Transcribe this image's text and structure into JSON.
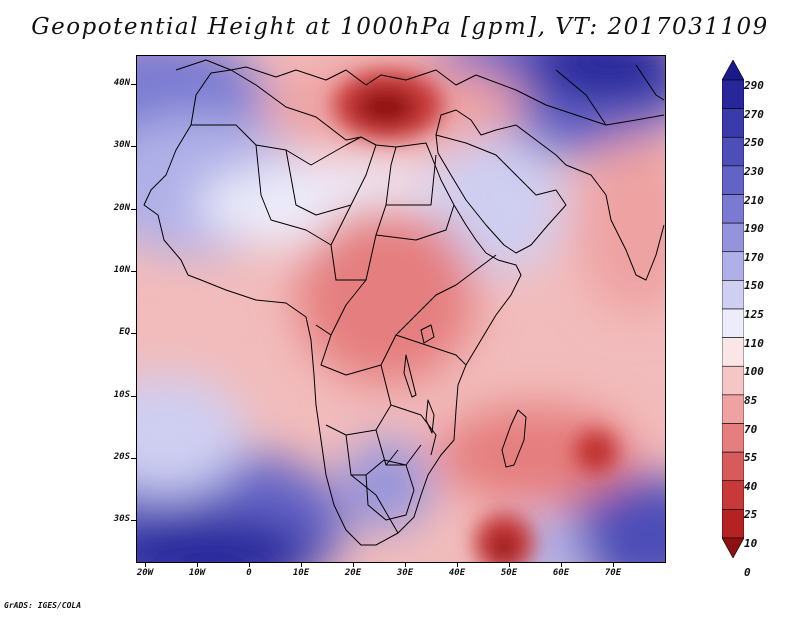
{
  "title": "Geopotential Height at 1000hPa [gpm], VT: 2017031109",
  "credit": "GrADS: IGES/COLA",
  "lat_labels": [
    "40N",
    "30N",
    "20N",
    "10N",
    "EQ",
    "10S",
    "20S",
    "30S"
  ],
  "lon_labels": [
    "20W",
    "10W",
    "0",
    "10E",
    "20E",
    "30E",
    "40E",
    "50E",
    "60E",
    "70E"
  ],
  "colorbar": {
    "levels": [
      "290",
      "270",
      "250",
      "230",
      "210",
      "190",
      "170",
      "150",
      "125",
      "110",
      "100",
      "85",
      "70",
      "55",
      "40",
      "25",
      "10",
      "0"
    ],
    "colors": [
      "#1a1a8c",
      "#27279b",
      "#3a3aaa",
      "#4e4eb8",
      "#6363c6",
      "#7a7ad2",
      "#9494dd",
      "#b0b0e8",
      "#cfcff2",
      "#ececfa",
      "#fae6e6",
      "#f5c6c6",
      "#eea2a2",
      "#e57e7e",
      "#d85a5a",
      "#c83a3a",
      "#b52222",
      "#8e1010"
    ]
  },
  "field": {
    "low_centers": [
      {
        "name": "Eastern Mediterranean",
        "lon": 28,
        "lat": 37,
        "value": 10
      },
      {
        "name": "South of Madagascar",
        "lon": 47,
        "lat": -35,
        "value": 5
      },
      {
        "name": "Mascarene Islands",
        "lon": 66,
        "lat": -20,
        "value": 25
      }
    ],
    "high_centers": [
      {
        "name": "Central Asia",
        "lon": 65,
        "lat": 43,
        "value": 280
      },
      {
        "name": "Eastern Atlantic",
        "lon": -20,
        "lat": 40,
        "value": 250
      },
      {
        "name": "South Atlantic",
        "lon": -10,
        "lat": -35,
        "value": 275
      },
      {
        "name": "Southern Indian Ocean",
        "lon": 70,
        "lat": -34,
        "value": 260
      }
    ]
  }
}
